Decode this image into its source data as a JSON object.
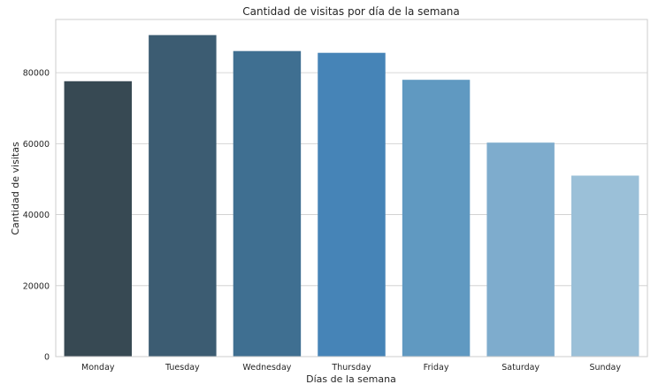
{
  "chart_data": {
    "type": "bar",
    "title": "Cantidad de visitas por día de la semana",
    "xlabel": "Días de la semana",
    "ylabel": "Cantidad de visitas",
    "categories": [
      "Monday",
      "Tuesday",
      "Wednesday",
      "Thursday",
      "Friday",
      "Saturday",
      "Sunday"
    ],
    "values": [
      77600,
      90600,
      86100,
      85600,
      78000,
      60300,
      51000
    ],
    "colors": [
      "#374953",
      "#3c5c72",
      "#3f6f91",
      "#4684b7",
      "#6099c1",
      "#7eaccd",
      "#9bc0d8"
    ],
    "ylim": [
      0,
      95000
    ],
    "yticks": [
      0,
      20000,
      40000,
      60000,
      80000
    ],
    "ytick_labels": [
      "0",
      "20000",
      "40000",
      "60000",
      "80000"
    ],
    "grid": true,
    "legend": "none"
  }
}
